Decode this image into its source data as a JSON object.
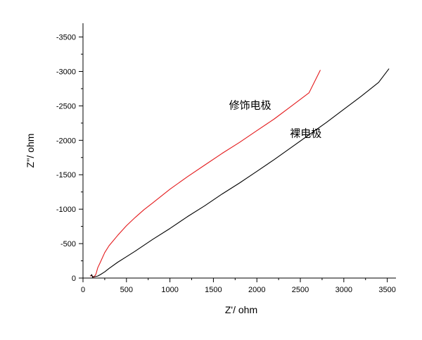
{
  "chart_data": {
    "type": "line",
    "title": "",
    "xlabel": "Z'/ ohm",
    "ylabel": "Z''/ ohm",
    "xlim": [
      0,
      3600
    ],
    "ylim": [
      0,
      -3700
    ],
    "x_ticks": [
      0,
      500,
      1000,
      1500,
      2000,
      2500,
      3000,
      3500
    ],
    "x_tick_labels": [
      "0",
      "500",
      "1000",
      "1500",
      "2000",
      "2500",
      "3000",
      "3500"
    ],
    "y_ticks": [
      0,
      -500,
      -1000,
      -1500,
      -2000,
      -2500,
      -3000,
      -3500
    ],
    "y_tick_labels": [
      "0",
      "-500",
      "-1000",
      "-1500",
      "-2000",
      "-2500",
      "-3000",
      "-3500"
    ],
    "grid": false,
    "legend": "none",
    "series": [
      {
        "name": "修饰电极",
        "color": "#e41a1c",
        "x": [
          80,
          100,
          115,
          125,
          135,
          150,
          170,
          200,
          250,
          300,
          400,
          500,
          600,
          700,
          800,
          1000,
          1200,
          1400,
          1600,
          1800,
          2000,
          2200,
          2400,
          2600,
          2730
        ],
        "y": [
          -30,
          -40,
          -20,
          -10,
          -30,
          -60,
          -150,
          -230,
          -370,
          -470,
          -620,
          -760,
          -880,
          -990,
          -1090,
          -1290,
          -1470,
          -1640,
          -1810,
          -1970,
          -2140,
          -2310,
          -2500,
          -2690,
          -3020
        ]
      },
      {
        "name": "裸电极",
        "color": "#000000",
        "x": [
          90,
          100,
          110,
          120,
          140,
          170,
          200,
          250,
          300,
          400,
          500,
          600,
          800,
          1000,
          1200,
          1400,
          1600,
          1800,
          2000,
          2200,
          2400,
          2600,
          2800,
          3000,
          3200,
          3400,
          3520
        ],
        "y": [
          -30,
          -50,
          -10,
          -20,
          -20,
          -30,
          -50,
          -90,
          -140,
          -230,
          -310,
          -390,
          -560,
          -720,
          -890,
          -1050,
          -1220,
          -1380,
          -1550,
          -1720,
          -1900,
          -2080,
          -2260,
          -2450,
          -2640,
          -2840,
          -3040
        ]
      }
    ],
    "annotations": [
      {
        "text": "修饰电极",
        "x": 1680,
        "y": -2460
      },
      {
        "text": "裸电极",
        "x": 2380,
        "y": -2050
      }
    ]
  }
}
